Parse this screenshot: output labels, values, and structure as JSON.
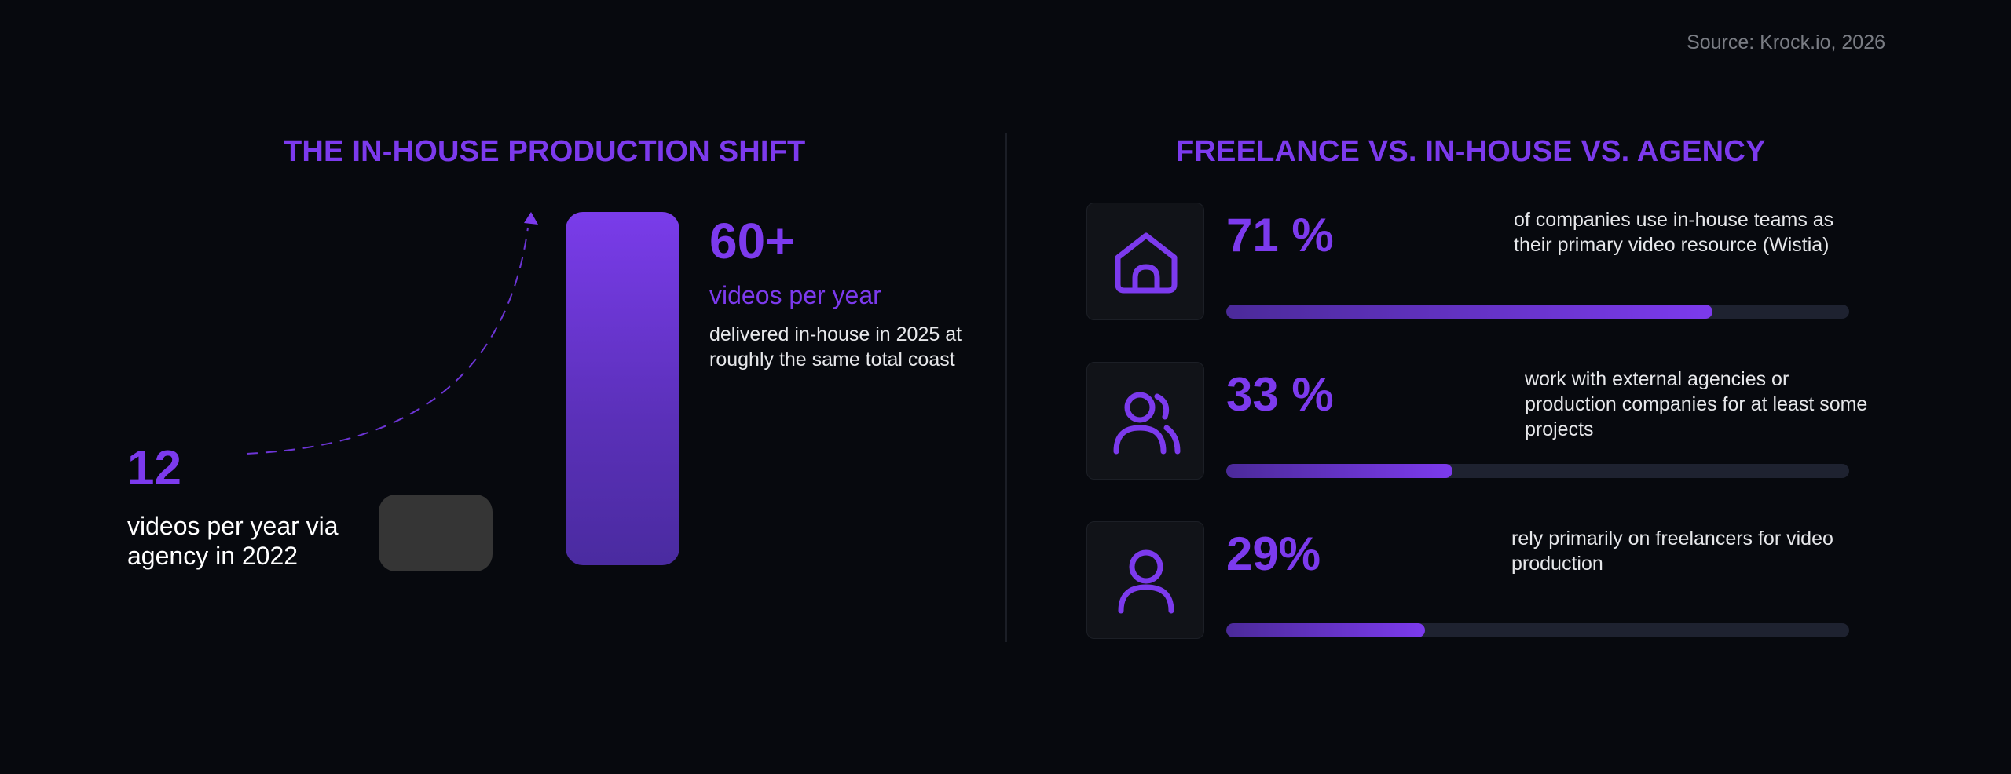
{
  "source": "Source: Krock.io, 2026",
  "left": {
    "title": "THE IN-HOUSE PRODUCTION SHIFT",
    "small_value": "12",
    "small_desc": "videos per year via agency in 2022",
    "big_value": "60+",
    "big_unit": "videos per year",
    "big_desc": "delivered in-house in 2025 at roughly the same total coast"
  },
  "right": {
    "title": "FREELANCE VS. IN-HOUSE VS. AGENCY",
    "stats": [
      {
        "icon": "house-icon",
        "pct": "71 %",
        "text": "of companies use in-house teams as their primary video resource (Wistia)"
      },
      {
        "icon": "users-icon",
        "pct": "33 %",
        "text": "work with external agencies or production companies for at least some projects"
      },
      {
        "icon": "user-icon",
        "pct": "29%",
        "text": "rely primarily on freelancers for video production"
      }
    ]
  },
  "colors": {
    "accent": "#7c3aed",
    "background": "#07090e",
    "bar_2022": "#353535",
    "track": "#1e2230"
  },
  "chart_data": [
    {
      "type": "bar",
      "categories": [
        "2022",
        "2025"
      ],
      "values": [
        12,
        60
      ],
      "title": "THE IN-HOUSE PRODUCTION SHIFT",
      "xlabel": "",
      "ylabel": ""
    },
    {
      "type": "bar",
      "categories": [
        "in-house teams",
        "external agencies",
        "freelancers"
      ],
      "values": [
        71,
        33,
        29
      ],
      "title": "FREELANCE VS. IN-HOUSE VS. AGENCY",
      "ylim": [
        0,
        100
      ],
      "orientation": "horizontal"
    }
  ]
}
